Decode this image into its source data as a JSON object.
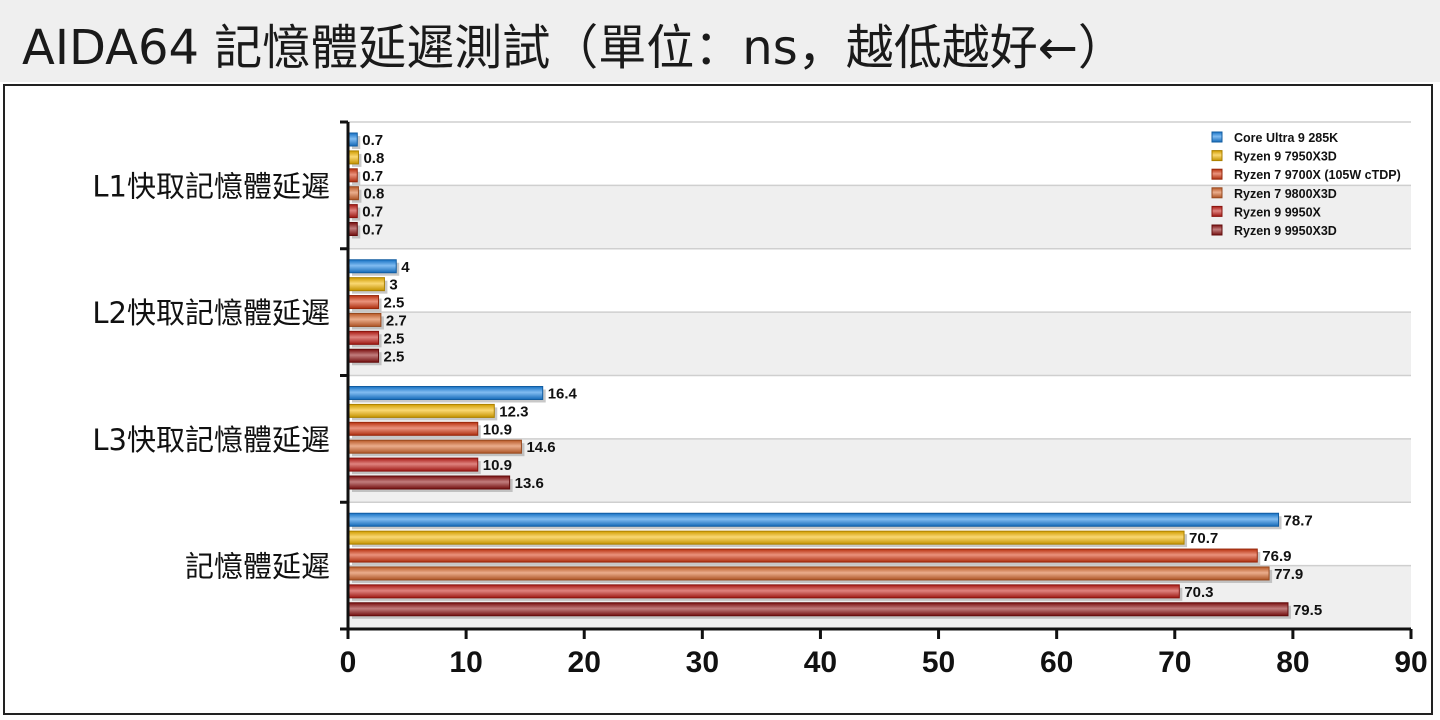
{
  "title": "AIDA64 記憶體延遲測試（單位：ns，越低越好←）",
  "chart_data": {
    "type": "bar",
    "orientation": "horizontal",
    "categories": [
      "L1快取記憶體延遲",
      "L2快取記憶體延遲",
      "L3快取記憶體延遲",
      "記憶體延遲"
    ],
    "series": [
      {
        "name": "Core Ultra 9 285K",
        "color": "#1a85e6",
        "values": [
          0.7,
          4,
          16.4,
          78.7
        ]
      },
      {
        "name": "Ryzen 9 7950X3D",
        "color": "#f5b800",
        "values": [
          0.8,
          3,
          12.3,
          70.7
        ]
      },
      {
        "name": "Ryzen 7 9700X (105W cTDP)",
        "color": "#d83a12",
        "values": [
          0.7,
          2.5,
          10.9,
          76.9
        ]
      },
      {
        "name": "Ryzen 7 9800X3D",
        "color": "#d8692e",
        "values": [
          0.8,
          2.7,
          14.6,
          77.9
        ]
      },
      {
        "name": "Ryzen 9 9950X",
        "color": "#c41d16",
        "values": [
          0.7,
          2.5,
          10.9,
          70.3
        ]
      },
      {
        "name": "Ryzen 9 9950X3D",
        "color": "#8e1212",
        "values": [
          0.7,
          2.5,
          13.6,
          79.5
        ]
      }
    ],
    "value_labels": [
      [
        "0.7",
        "4",
        "16.4",
        "78.7"
      ],
      [
        "0.8",
        "3",
        "12.3",
        "70.7"
      ],
      [
        "0.7",
        "2.5",
        "10.9",
        "76.9"
      ],
      [
        "0.8",
        "2.7",
        "14.6",
        "77.9"
      ],
      [
        "0.7",
        "2.5",
        "10.9",
        "70.3"
      ],
      [
        "0.7",
        "2.5",
        "13.6",
        "79.5"
      ]
    ],
    "xlim": [
      0,
      90
    ],
    "xticks": [
      "0",
      "10",
      "20",
      "30",
      "40",
      "50",
      "60",
      "70",
      "80",
      "90"
    ],
    "grid": true,
    "legend_position": "top-right"
  }
}
